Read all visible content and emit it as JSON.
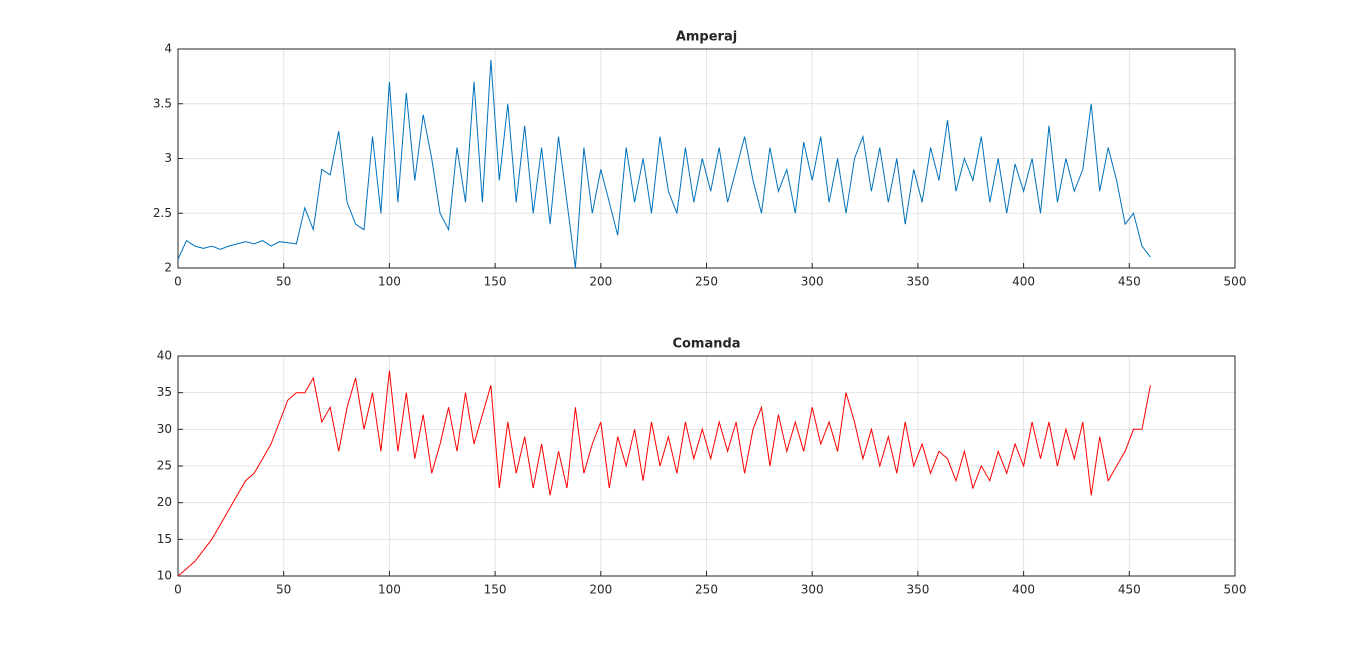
{
  "chart_data": [
    {
      "type": "line",
      "title": "Amperaj",
      "x": [
        0,
        4,
        8,
        12,
        16,
        20,
        24,
        28,
        32,
        36,
        40,
        44,
        48,
        52,
        56,
        60,
        64,
        68,
        72,
        76,
        80,
        84,
        88,
        92,
        96,
        100,
        104,
        108,
        112,
        116,
        120,
        124,
        128,
        132,
        136,
        140,
        144,
        148,
        152,
        156,
        160,
        164,
        168,
        172,
        176,
        180,
        184,
        188,
        192,
        196,
        200,
        204,
        208,
        212,
        216,
        220,
        224,
        228,
        232,
        236,
        240,
        244,
        248,
        252,
        256,
        260,
        264,
        268,
        272,
        276,
        280,
        284,
        288,
        292,
        296,
        300,
        304,
        308,
        312,
        316,
        320,
        324,
        328,
        332,
        336,
        340,
        344,
        348,
        352,
        356,
        360,
        364,
        368,
        372,
        376,
        380,
        384,
        388,
        392,
        396,
        400,
        404,
        408,
        412,
        416,
        420,
        424,
        428,
        432,
        436,
        440,
        444,
        448,
        452,
        456,
        460
      ],
      "series": [
        {
          "name": "Amperaj",
          "color": "#0072bd",
          "values": [
            2.08,
            2.25,
            2.2,
            2.18,
            2.2,
            2.17,
            2.2,
            2.22,
            2.24,
            2.22,
            2.25,
            2.2,
            2.24,
            2.23,
            2.22,
            2.55,
            2.35,
            2.9,
            2.85,
            3.25,
            2.6,
            2.4,
            2.35,
            3.2,
            2.5,
            3.7,
            2.6,
            3.6,
            2.8,
            3.4,
            3.0,
            2.5,
            2.35,
            3.1,
            2.6,
            3.7,
            2.6,
            3.9,
            2.8,
            3.5,
            2.6,
            3.3,
            2.5,
            3.1,
            2.4,
            3.2,
            2.6,
            2.0,
            3.1,
            2.5,
            2.9,
            2.6,
            2.3,
            3.1,
            2.6,
            3.0,
            2.5,
            3.2,
            2.7,
            2.5,
            3.1,
            2.6,
            3.0,
            2.7,
            3.1,
            2.6,
            2.9,
            3.2,
            2.8,
            2.5,
            3.1,
            2.7,
            2.9,
            2.5,
            3.15,
            2.8,
            3.2,
            2.6,
            3.0,
            2.5,
            3.0,
            3.2,
            2.7,
            3.1,
            2.6,
            3.0,
            2.4,
            2.9,
            2.6,
            3.1,
            2.8,
            3.35,
            2.7,
            3.0,
            2.8,
            3.2,
            2.6,
            3.0,
            2.5,
            2.95,
            2.7,
            3.0,
            2.5,
            3.3,
            2.6,
            3.0,
            2.7,
            2.9,
            3.5,
            2.7,
            3.1,
            2.8,
            2.4,
            2.5,
            2.2,
            2.1
          ]
        }
      ],
      "xlim": [
        0,
        500
      ],
      "xticks": [
        0,
        50,
        100,
        150,
        200,
        250,
        300,
        350,
        400,
        450,
        500
      ],
      "ylim": [
        2,
        4
      ],
      "yticks": [
        2,
        2.5,
        3,
        3.5,
        4
      ],
      "grid": true
    },
    {
      "type": "line",
      "title": "Comanda",
      "x": [
        0,
        4,
        8,
        12,
        16,
        20,
        24,
        28,
        32,
        36,
        40,
        44,
        48,
        52,
        56,
        60,
        64,
        68,
        72,
        76,
        80,
        84,
        88,
        92,
        96,
        100,
        104,
        108,
        112,
        116,
        120,
        124,
        128,
        132,
        136,
        140,
        144,
        148,
        152,
        156,
        160,
        164,
        168,
        172,
        176,
        180,
        184,
        188,
        192,
        196,
        200,
        204,
        208,
        212,
        216,
        220,
        224,
        228,
        232,
        236,
        240,
        244,
        248,
        252,
        256,
        260,
        264,
        268,
        272,
        276,
        280,
        284,
        288,
        292,
        296,
        300,
        304,
        308,
        312,
        316,
        320,
        324,
        328,
        332,
        336,
        340,
        344,
        348,
        352,
        356,
        360,
        364,
        368,
        372,
        376,
        380,
        384,
        388,
        392,
        396,
        400,
        404,
        408,
        412,
        416,
        420,
        424,
        428,
        432,
        436,
        440,
        444,
        448,
        452,
        456,
        460
      ],
      "series": [
        {
          "name": "Comanda",
          "color": "#ff0000",
          "values": [
            10,
            11,
            12,
            13.5,
            15,
            17,
            19,
            21,
            23,
            24,
            26,
            28,
            31,
            34,
            35,
            35,
            37,
            31,
            33,
            27,
            33,
            37,
            30,
            35,
            27,
            38,
            27,
            35,
            26,
            32,
            24,
            28,
            33,
            27,
            35,
            28,
            32,
            36,
            22,
            31,
            24,
            29,
            22,
            28,
            21,
            27,
            22,
            33,
            24,
            28,
            31,
            22,
            29,
            25,
            30,
            23,
            31,
            25,
            29,
            24,
            31,
            26,
            30,
            26,
            31,
            27,
            31,
            24,
            30,
            33,
            25,
            32,
            27,
            31,
            27,
            33,
            28,
            31,
            27,
            35,
            31,
            26,
            30,
            25,
            29,
            24,
            31,
            25,
            28,
            24,
            27,
            26,
            23,
            27,
            22,
            25,
            23,
            27,
            24,
            28,
            25,
            31,
            26,
            31,
            25,
            30,
            26,
            31,
            21,
            29,
            23,
            25,
            27,
            30,
            30,
            36
          ]
        }
      ],
      "xlim": [
        0,
        500
      ],
      "xticks": [
        0,
        50,
        100,
        150,
        200,
        250,
        300,
        350,
        400,
        450,
        500
      ],
      "ylim": [
        10,
        40
      ],
      "yticks": [
        10,
        15,
        20,
        25,
        30,
        35,
        40
      ],
      "grid": true
    }
  ]
}
